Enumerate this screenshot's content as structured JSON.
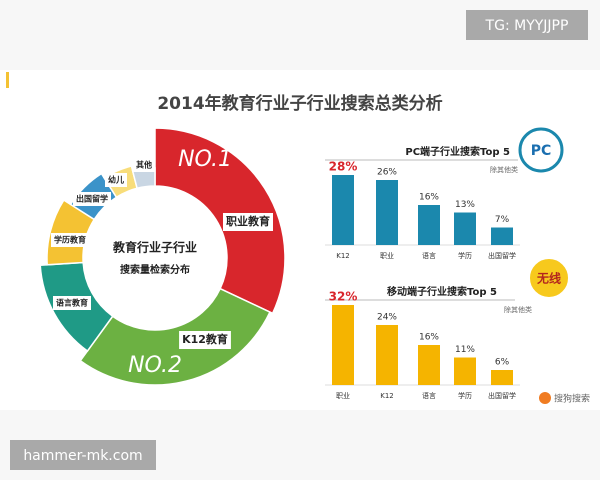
{
  "watermark_top": "TG: MYYJJPP",
  "watermark_bottom": "hammer-mk.com",
  "title": "2014年教育行业子行业搜索总类分析",
  "logo": "搜狗搜索",
  "chart_data": [
    {
      "type": "pie",
      "center_label": [
        "教育行业子行业",
        "搜索量检索分布"
      ],
      "annotations": [
        "NO.1",
        "NO.2"
      ],
      "categories": [
        "职业教育",
        "K12教育",
        "语言教育",
        "学历教育",
        "出国留学",
        "幼儿",
        "其他"
      ],
      "values": [
        32,
        28,
        14,
        10,
        7,
        5,
        4
      ],
      "colors": [
        "#d8262c",
        "#6cb142",
        "#1f9a86",
        "#f4c233",
        "#3b93c9",
        "#f8dd7a",
        "#c9d6e3"
      ]
    },
    {
      "type": "bar",
      "title": "PC端子行业搜索Top 5",
      "badge": "PC",
      "note": "除其他类",
      "categories": [
        "K12",
        "职业",
        "语言",
        "学历",
        "出国留学"
      ],
      "values": [
        28,
        26,
        16,
        13,
        7
      ],
      "value_labels": [
        "28%",
        "26%",
        "16%",
        "13%",
        "7%"
      ],
      "color": "#1b88ad",
      "highlight_color": "#d8262c"
    },
    {
      "type": "bar",
      "title": "移动端子行业搜索Top 5",
      "badge": "无线",
      "note": "除其他类",
      "categories": [
        "职业",
        "K12",
        "语言",
        "学历",
        "出国留学"
      ],
      "values": [
        32,
        24,
        16,
        11,
        6
      ],
      "value_labels": [
        "32%",
        "24%",
        "16%",
        "11%",
        "6%"
      ],
      "color": "#f5b400",
      "highlight_color": "#d8262c"
    }
  ]
}
